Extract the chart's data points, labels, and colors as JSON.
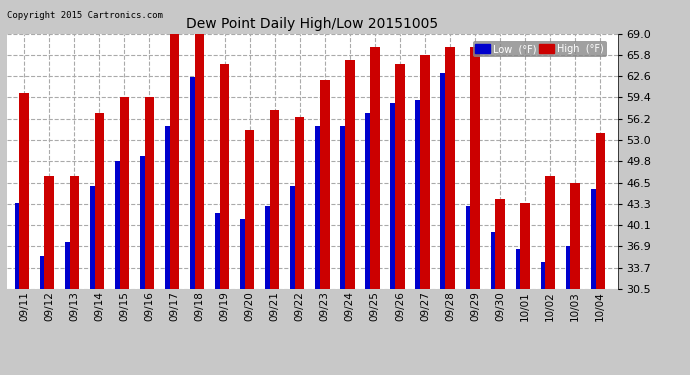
{
  "title": "Dew Point Daily High/Low 20151005",
  "copyright": "Copyright 2015 Cartronics.com",
  "dates": [
    "09/11",
    "09/12",
    "09/13",
    "09/14",
    "09/15",
    "09/16",
    "09/17",
    "09/18",
    "09/19",
    "09/20",
    "09/21",
    "09/22",
    "09/23",
    "09/24",
    "09/25",
    "09/26",
    "09/27",
    "09/28",
    "09/29",
    "09/30",
    "10/01",
    "10/02",
    "10/03",
    "10/04"
  ],
  "highs": [
    60.0,
    47.5,
    47.5,
    57.0,
    59.4,
    59.4,
    69.0,
    69.0,
    64.5,
    54.5,
    57.5,
    56.5,
    62.0,
    65.0,
    67.0,
    64.5,
    65.8,
    67.0,
    67.0,
    44.0,
    43.5,
    47.5,
    46.5,
    54.0
  ],
  "lows": [
    43.5,
    35.5,
    37.5,
    46.0,
    49.8,
    50.5,
    55.0,
    62.5,
    42.0,
    41.0,
    43.0,
    46.0,
    55.0,
    55.0,
    57.0,
    58.5,
    59.0,
    63.0,
    43.0,
    39.0,
    36.5,
    34.5,
    37.0,
    45.5
  ],
  "ymin": 30.5,
  "ymax": 69.0,
  "yticks": [
    30.5,
    33.7,
    36.9,
    40.1,
    43.3,
    46.5,
    49.8,
    53.0,
    56.2,
    59.4,
    62.6,
    65.8,
    69.0
  ],
  "bar_color_low": "#0000cc",
  "bar_color_high": "#cc0000",
  "bg_color": "#c8c8c8",
  "plot_bg_color": "#ffffff",
  "grid_color": "#aaaaaa",
  "legend_low_label": "Low  (°F)",
  "legend_high_label": "High  (°F)"
}
